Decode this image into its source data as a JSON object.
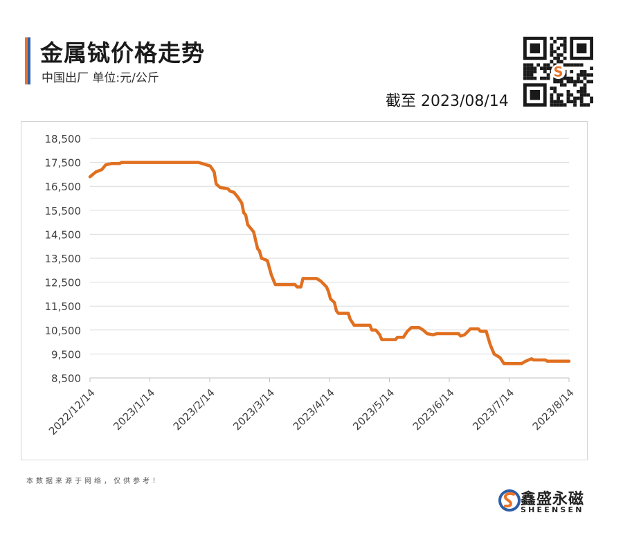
{
  "header": {
    "title": "金属铽价格走势",
    "subtitle": "中国出厂  单位:元/公斤",
    "as_of": "截至 2023/08/14",
    "accent_colors": [
      "#e8742a",
      "#2f5fa8"
    ]
  },
  "qr_icon": "qr-code-icon",
  "footer": {
    "disclaimer": "本数据来源于网络，仅供参考！",
    "logo_cn": "鑫盛永磁",
    "logo_en": "SHEENSEN",
    "logo_icon": "sheensen-s-logo-icon"
  },
  "chart_data": {
    "type": "line",
    "x_tick_labels": [
      "2022/12/14",
      "2023/1/14",
      "2023/2/14",
      "2023/3/14",
      "2023/4/14",
      "2023/5/14",
      "2023/6/14",
      "2023/7/14",
      "2023/8/14"
    ],
    "y_tick_labels": [
      "18,500",
      "17,500",
      "16,500",
      "15,500",
      "14,500",
      "13,500",
      "12,500",
      "11,500",
      "10,500",
      "9,500",
      "8,500"
    ],
    "ylim": [
      8500,
      18500
    ],
    "xlim": [
      "2022-12-14",
      "2023-08-14"
    ],
    "grid": "horizontal",
    "line_color": "#e07020",
    "series": [
      {
        "points": [
          [
            "2022-12-14",
            16900
          ],
          [
            "2022-12-17",
            17100
          ],
          [
            "2022-12-20",
            17200
          ],
          [
            "2022-12-22",
            17400
          ],
          [
            "2022-12-25",
            17450
          ],
          [
            "2022-12-29",
            17450
          ],
          [
            "2022-12-30",
            17500
          ],
          [
            "2023-01-10",
            17500
          ],
          [
            "2023-01-20",
            17500
          ],
          [
            "2023-02-07",
            17500
          ],
          [
            "2023-02-09",
            17450
          ],
          [
            "2023-02-13",
            17350
          ],
          [
            "2023-02-15",
            17100
          ],
          [
            "2023-02-16",
            16600
          ],
          [
            "2023-02-18",
            16450
          ],
          [
            "2023-02-22",
            16400
          ],
          [
            "2023-02-23",
            16300
          ],
          [
            "2023-02-25",
            16250
          ],
          [
            "2023-02-27",
            16050
          ],
          [
            "2023-03-01",
            15800
          ],
          [
            "2023-03-02",
            15400
          ],
          [
            "2023-03-03",
            15300
          ],
          [
            "2023-03-04",
            14900
          ],
          [
            "2023-03-07",
            14600
          ],
          [
            "2023-03-09",
            13900
          ],
          [
            "2023-03-10",
            13800
          ],
          [
            "2023-03-11",
            13500
          ],
          [
            "2023-03-14",
            13400
          ],
          [
            "2023-03-16",
            12800
          ],
          [
            "2023-03-18",
            12400
          ],
          [
            "2023-03-28",
            12400
          ],
          [
            "2023-03-29",
            12300
          ],
          [
            "2023-03-31",
            12300
          ],
          [
            "2023-04-01",
            12650
          ],
          [
            "2023-04-08",
            12650
          ],
          [
            "2023-04-10",
            12550
          ],
          [
            "2023-04-13",
            12300
          ],
          [
            "2023-04-14",
            12100
          ],
          [
            "2023-04-15",
            11800
          ],
          [
            "2023-04-17",
            11650
          ],
          [
            "2023-04-18",
            11300
          ],
          [
            "2023-04-19",
            11200
          ],
          [
            "2023-04-24",
            11200
          ],
          [
            "2023-04-25",
            10950
          ],
          [
            "2023-04-27",
            10700
          ],
          [
            "2023-05-05",
            10700
          ],
          [
            "2023-05-06",
            10500
          ],
          [
            "2023-05-08",
            10500
          ],
          [
            "2023-05-10",
            10300
          ],
          [
            "2023-05-11",
            10100
          ],
          [
            "2023-05-18",
            10100
          ],
          [
            "2023-05-19",
            10200
          ],
          [
            "2023-05-22",
            10200
          ],
          [
            "2023-05-24",
            10450
          ],
          [
            "2023-05-26",
            10600
          ],
          [
            "2023-05-30",
            10600
          ],
          [
            "2023-06-01",
            10500
          ],
          [
            "2023-06-03",
            10350
          ],
          [
            "2023-06-06",
            10300
          ],
          [
            "2023-06-08",
            10350
          ],
          [
            "2023-06-19",
            10350
          ],
          [
            "2023-06-20",
            10250
          ],
          [
            "2023-06-22",
            10300
          ],
          [
            "2023-06-25",
            10550
          ],
          [
            "2023-06-29",
            10550
          ],
          [
            "2023-06-30",
            10450
          ],
          [
            "2023-07-03",
            10450
          ],
          [
            "2023-07-05",
            9900
          ],
          [
            "2023-07-07",
            9500
          ],
          [
            "2023-07-10",
            9350
          ],
          [
            "2023-07-12",
            9100
          ],
          [
            "2023-07-21",
            9100
          ],
          [
            "2023-07-23",
            9200
          ],
          [
            "2023-07-26",
            9300
          ],
          [
            "2023-07-27",
            9250
          ],
          [
            "2023-08-02",
            9250
          ],
          [
            "2023-08-03",
            9200
          ],
          [
            "2023-08-14",
            9200
          ]
        ]
      }
    ]
  }
}
